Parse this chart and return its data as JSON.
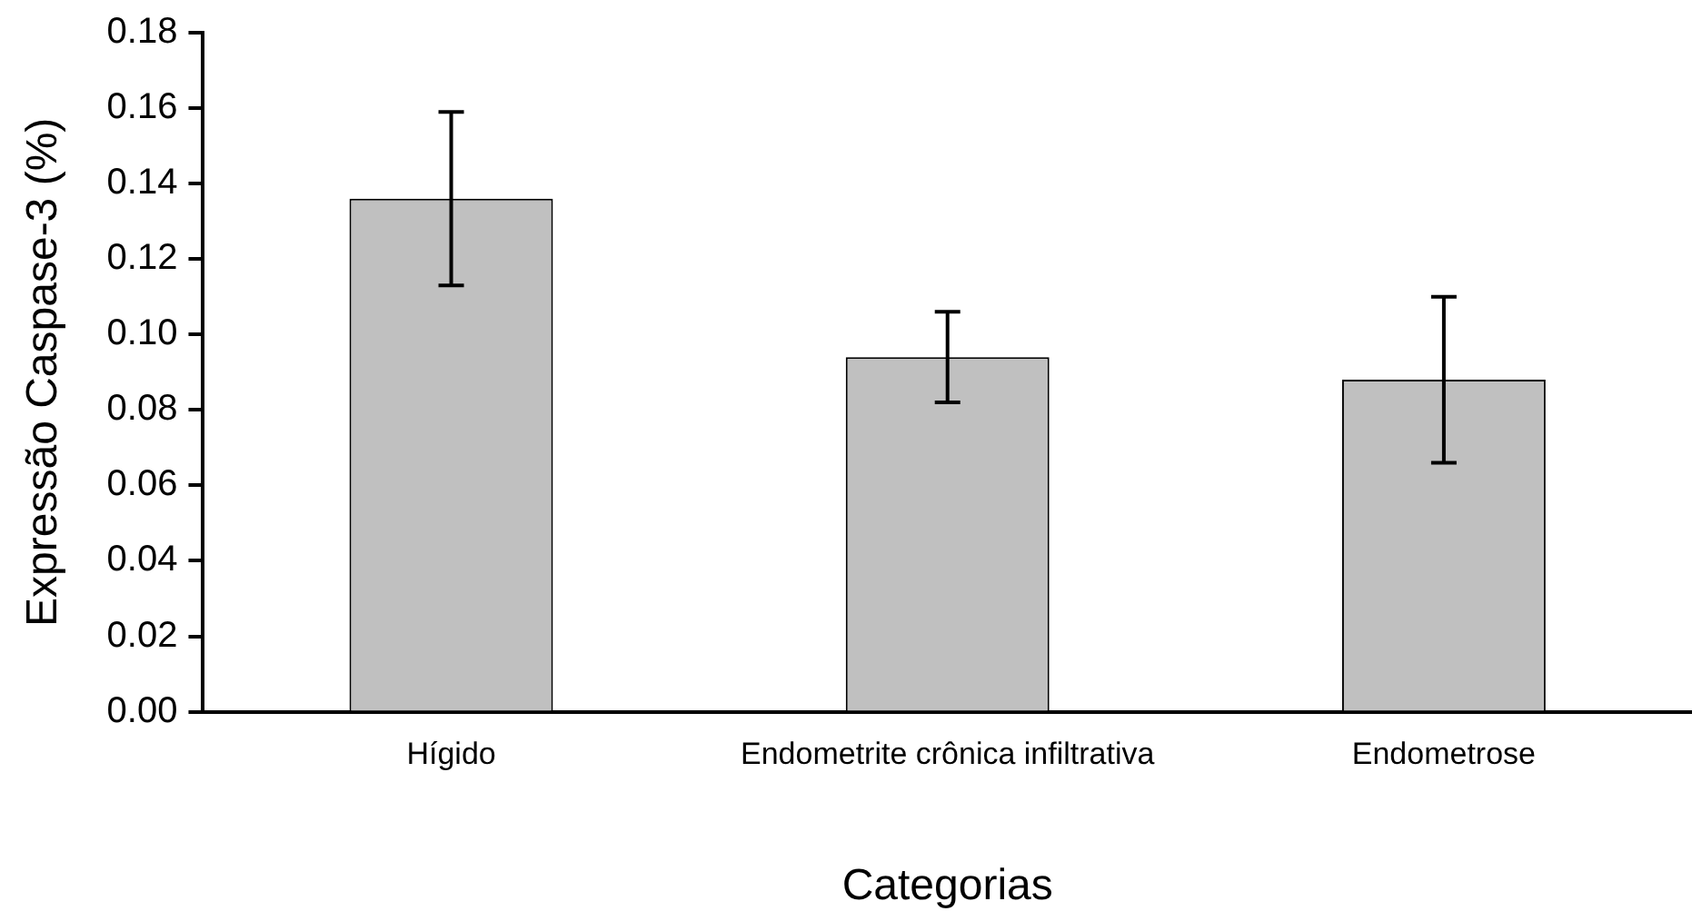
{
  "chart_data": {
    "type": "bar",
    "xlabel": "Categorias",
    "ylabel": "Expressão Caspase-3 (%)",
    "categories": [
      "Hígido",
      "Endometrite crônica infiltrativa",
      "Endometrose"
    ],
    "values": [
      0.136,
      0.094,
      0.088
    ],
    "errors": [
      0.023,
      0.012,
      0.022
    ],
    "color": "#c0c0c0",
    "ylim": [
      0,
      0.18
    ],
    "yticks": [
      {
        "value": 0,
        "label": "0.00"
      },
      {
        "value": 0.02,
        "label": "0.02"
      },
      {
        "value": 0.04,
        "label": "0.04"
      },
      {
        "value": 0.06,
        "label": "0.06"
      },
      {
        "value": 0.08,
        "label": "0.08"
      },
      {
        "value": 0.1,
        "label": "0.10"
      },
      {
        "value": 0.12,
        "label": "0.12"
      },
      {
        "value": 0.14,
        "label": "0.14"
      },
      {
        "value": 0.16,
        "label": "0.16"
      },
      {
        "value": 0.18,
        "label": "0.18"
      }
    ],
    "grid": false,
    "legend": false
  }
}
